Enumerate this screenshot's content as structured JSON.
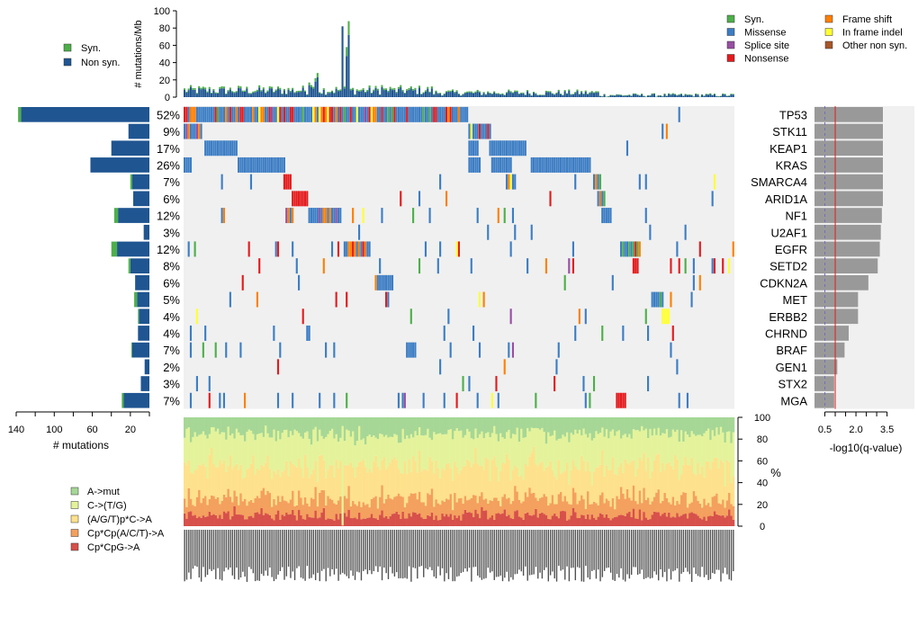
{
  "chart_data": {
    "type": "oncoprint",
    "top_panel": {
      "ylabel": "# mutations/Mb",
      "yticks": [
        0,
        20,
        40,
        60,
        80,
        100
      ],
      "ylim": [
        0,
        100
      ],
      "legend": [
        {
          "label": "Syn.",
          "color": "#4DAF4A"
        },
        {
          "label": "Non syn.",
          "color": "#1F5591"
        }
      ]
    },
    "mutation_legend": [
      {
        "label": "Syn.",
        "color": "#4DAF4A"
      },
      {
        "label": "Missense",
        "color": "#3C7DC4"
      },
      {
        "label": "Splice site",
        "color": "#984EA3"
      },
      {
        "label": "Nonsense",
        "color": "#E41A1C"
      },
      {
        "label": "Frame shift",
        "color": "#FF7F00"
      },
      {
        "label": "In frame indel",
        "color": "#FFFF33"
      },
      {
        "label": "Other non syn.",
        "color": "#A65628"
      }
    ],
    "genes": [
      {
        "name": "TP53",
        "pct": "52%",
        "count": 138,
        "syn": 3,
        "neglog10q": 3.3
      },
      {
        "name": "STK11",
        "pct": "9%",
        "count": 22,
        "syn": 0,
        "neglog10q": 3.3
      },
      {
        "name": "KEAP1",
        "pct": "17%",
        "count": 40,
        "syn": 0,
        "neglog10q": 3.3
      },
      {
        "name": "KRAS",
        "pct": "26%",
        "count": 62,
        "syn": 0,
        "neglog10q": 3.3
      },
      {
        "name": "SMARCA4",
        "pct": "7%",
        "count": 20,
        "syn": 2,
        "neglog10q": 3.3
      },
      {
        "name": "ARID1A",
        "pct": "6%",
        "count": 17,
        "syn": 0,
        "neglog10q": 3.3
      },
      {
        "name": "NF1",
        "pct": "12%",
        "count": 37,
        "syn": 4,
        "neglog10q": 3.25
      },
      {
        "name": "U2AF1",
        "pct": "3%",
        "count": 6,
        "syn": 0,
        "neglog10q": 3.2
      },
      {
        "name": "EGFR",
        "pct": "12%",
        "count": 40,
        "syn": 6,
        "neglog10q": 3.15
      },
      {
        "name": "SETD2",
        "pct": "8%",
        "count": 22,
        "syn": 2,
        "neglog10q": 3.05
      },
      {
        "name": "CDKN2A",
        "pct": "6%",
        "count": 15,
        "syn": 0,
        "neglog10q": 2.6
      },
      {
        "name": "MET",
        "pct": "5%",
        "count": 16,
        "syn": 3,
        "neglog10q": 2.1
      },
      {
        "name": "ERBB2",
        "pct": "4%",
        "count": 12,
        "syn": 1,
        "neglog10q": 2.1
      },
      {
        "name": "CHRND",
        "pct": "4%",
        "count": 12,
        "syn": 0,
        "neglog10q": 1.65
      },
      {
        "name": "BRAF",
        "pct": "7%",
        "count": 19,
        "syn": 1,
        "neglog10q": 1.45
      },
      {
        "name": "GEN1",
        "pct": "2%",
        "count": 5,
        "syn": 0,
        "neglog10q": 1.1
      },
      {
        "name": "STX2",
        "pct": "3%",
        "count": 9,
        "syn": 0,
        "neglog10q": 0.95
      },
      {
        "name": "MGA",
        "pct": "7%",
        "count": 29,
        "syn": 2,
        "neglog10q": 0.95
      }
    ],
    "left_axis": {
      "xlabel": "# mutations",
      "ticks": [
        140,
        100,
        60,
        20
      ]
    },
    "right_axis": {
      "xlabel": "-log10(q-value)",
      "ticks": [
        "0.5",
        "2.0",
        "3.5"
      ],
      "threshold": 1.0,
      "dashed": 0.5
    },
    "spectrum": {
      "ylabel": "%",
      "yticks": [
        0,
        20,
        40,
        60,
        80,
        100
      ],
      "categories": [
        {
          "label": "A->mut",
          "color": "#A6D796",
          "mean": 15
        },
        {
          "label": "C->(T/G)",
          "color": "#E4F39B",
          "mean": 30
        },
        {
          "label": "(A/G/T)p*C->A",
          "color": "#FEE18C",
          "mean": 30
        },
        {
          "label": "Cp*Cp(A/C/T)->A",
          "color": "#F4A05E",
          "mean": 15
        },
        {
          "label": "Cp*CpG->A",
          "color": "#D7504B",
          "mean": 10
        }
      ]
    },
    "n_samples": 265
  }
}
